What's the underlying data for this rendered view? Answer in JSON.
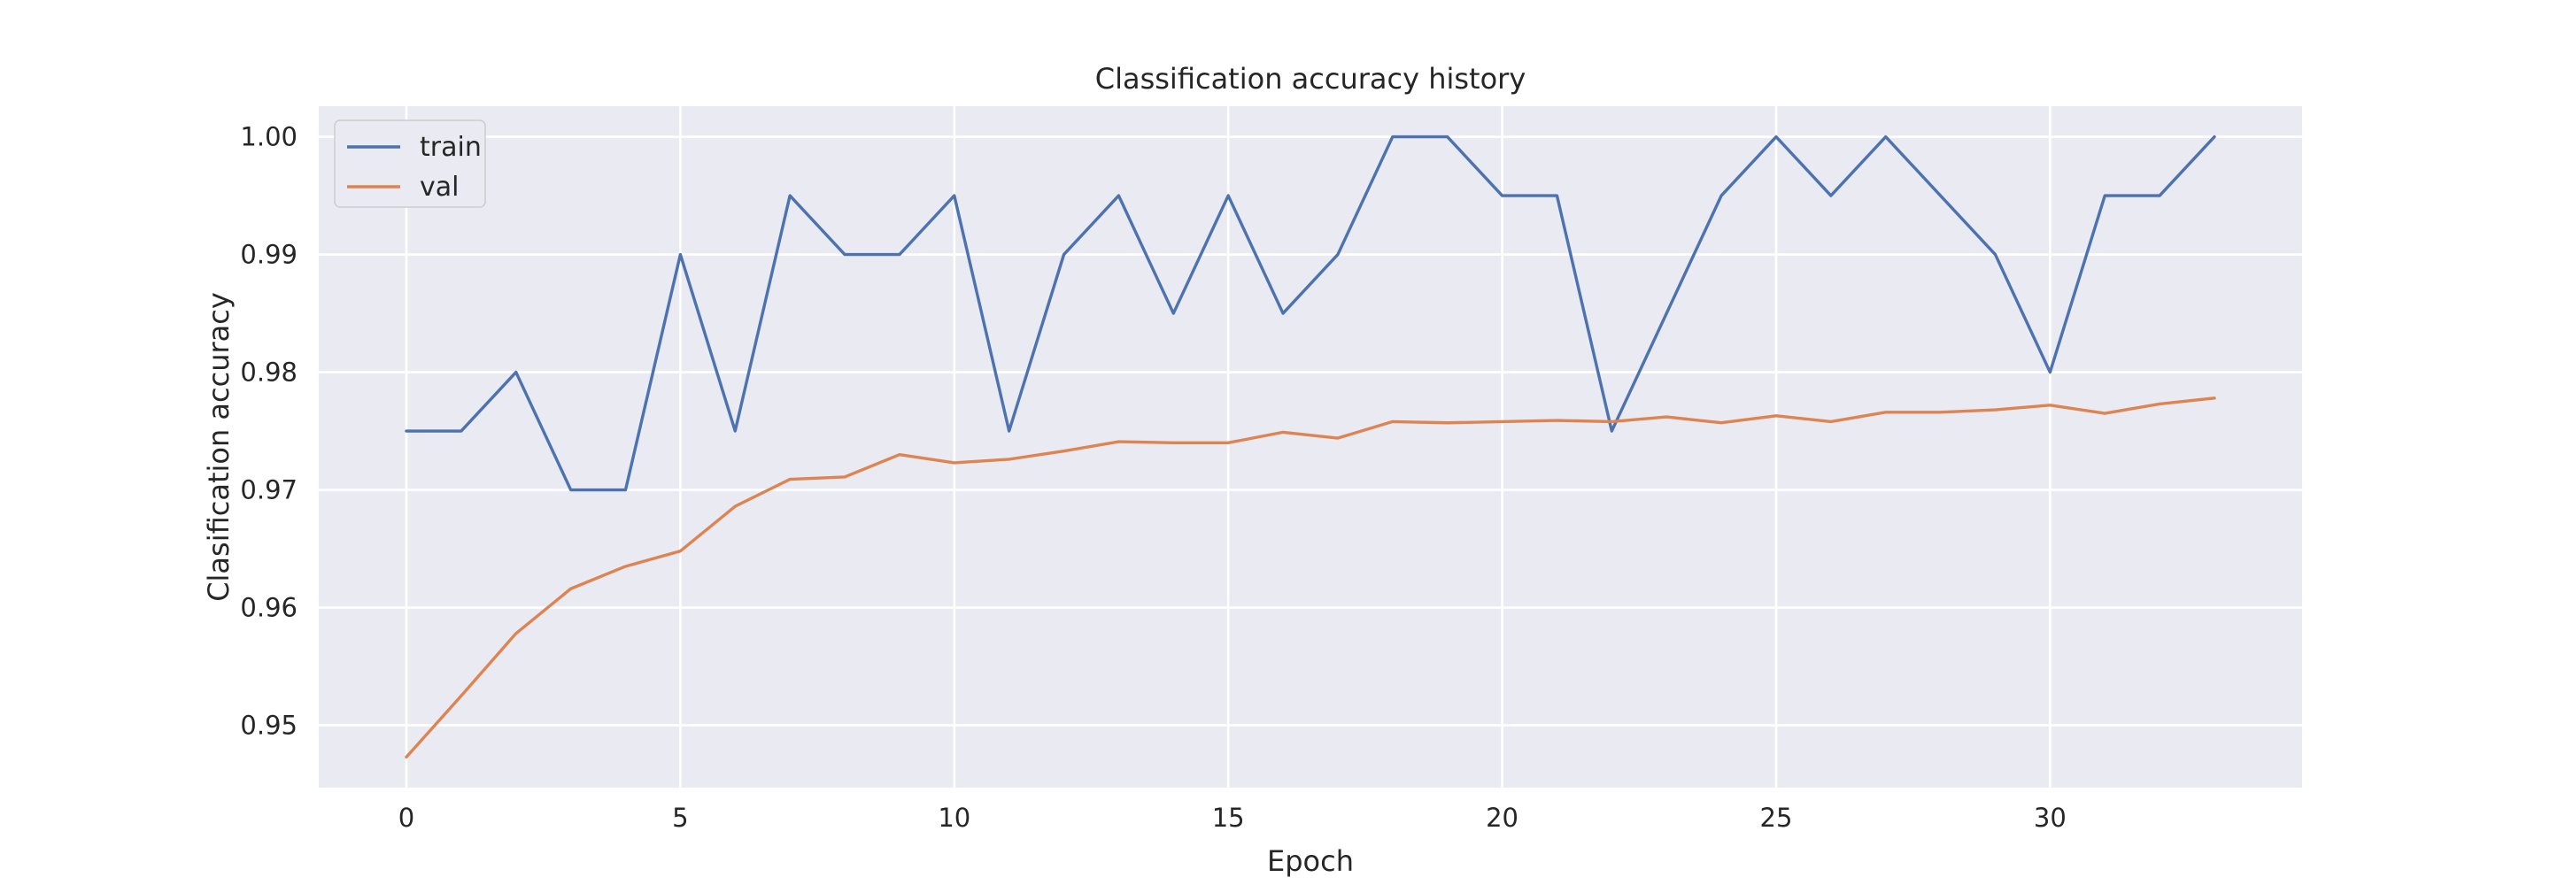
{
  "chart_data": {
    "type": "line",
    "title": "Classification accuracy history",
    "xlabel": "Epoch",
    "ylabel": "Clasification accuracy",
    "xlim": [
      -1.6,
      34.6
    ],
    "ylim": [
      0.9447,
      1.0026
    ],
    "xticks": [
      0,
      5,
      10,
      15,
      20,
      25,
      30
    ],
    "yticks": [
      0.95,
      0.96,
      0.97,
      0.98,
      0.99,
      1.0
    ],
    "ytick_labels": [
      "0.95",
      "0.96",
      "0.97",
      "0.98",
      "0.99",
      "1.00"
    ],
    "grid": true,
    "legend_position": "upper-left",
    "background": "#eaeaf2",
    "x": [
      0,
      1,
      2,
      3,
      4,
      5,
      6,
      7,
      8,
      9,
      10,
      11,
      12,
      13,
      14,
      15,
      16,
      17,
      18,
      19,
      20,
      21,
      22,
      23,
      24,
      25,
      26,
      27,
      28,
      29,
      30,
      31,
      32,
      33
    ],
    "series": [
      {
        "name": "train",
        "color": "#4c72b0",
        "values": [
          0.975,
          0.975,
          0.98,
          0.97,
          0.97,
          0.99,
          0.975,
          0.995,
          0.99,
          0.99,
          0.995,
          0.975,
          0.99,
          0.995,
          0.985,
          0.995,
          0.985,
          0.99,
          1.0,
          1.0,
          0.995,
          0.995,
          0.975,
          0.985,
          0.995,
          1.0,
          0.995,
          1.0,
          0.995,
          0.99,
          0.98,
          0.995,
          0.995,
          1.0
        ]
      },
      {
        "name": "val",
        "color": "#dd8452",
        "values": [
          0.9473,
          0.9525,
          0.9578,
          0.9616,
          0.9635,
          0.9648,
          0.9686,
          0.9709,
          0.9711,
          0.973,
          0.9723,
          0.9726,
          0.9733,
          0.9741,
          0.974,
          0.974,
          0.9749,
          0.9744,
          0.9758,
          0.9757,
          0.9758,
          0.9759,
          0.9758,
          0.9762,
          0.9757,
          0.9763,
          0.9758,
          0.9766,
          0.9766,
          0.9768,
          0.9772,
          0.9765,
          0.9773,
          0.9778
        ]
      }
    ]
  }
}
